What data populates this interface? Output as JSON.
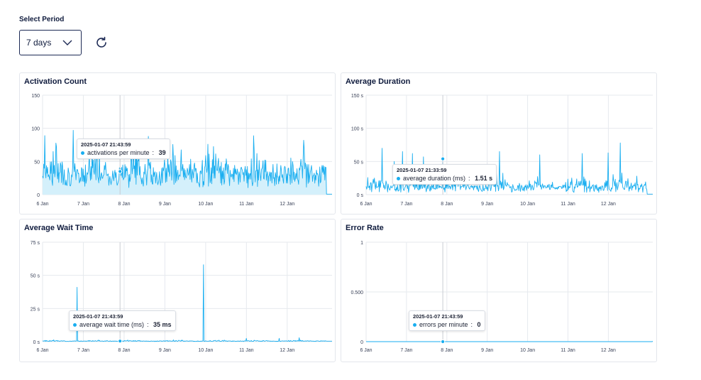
{
  "controls": {
    "period_label": "Select Period",
    "period_value": "7 days",
    "refresh_icon": "refresh-icon",
    "chevron_icon": "chevron-down-icon"
  },
  "colors": {
    "series": "#19aef0",
    "fill": "#d4f0fb",
    "grid": "#e6e9ee",
    "cursor": "#c9ccd2",
    "text": "#0f1b3d"
  },
  "chart_data": [
    {
      "id": "activation",
      "type": "area",
      "title": "Activation Count",
      "x_tick_labels": [
        "6 Jan",
        "7 Jan",
        "8 Jan",
        "9 Jan",
        "10 Jan",
        "11 Jan",
        "12 Jan"
      ],
      "y_tick_labels": [
        "0",
        "50",
        "100",
        "150"
      ],
      "y_ticks": [
        0,
        50,
        100,
        150
      ],
      "ylim": [
        0,
        150
      ],
      "xlim": [
        0,
        7.1
      ],
      "grid": true,
      "baseline": 25,
      "spread": 28,
      "spikes": [
        [
          0.05,
          89
        ],
        [
          0.75,
          97
        ],
        [
          4.05,
          76
        ],
        [
          5.25,
          62
        ],
        [
          6.4,
          82
        ],
        [
          6.85,
          44
        ],
        [
          2.6,
          88
        ]
      ],
      "tail_zero_from": 6.95,
      "seed": 7,
      "fill_area": true,
      "cursor_x": 1.9,
      "tooltip": {
        "time": "2025-01-07 21:43:59",
        "series": "activations per minute",
        "value": "39"
      }
    },
    {
      "id": "duration",
      "type": "line",
      "title": "Average Duration",
      "x_tick_labels": [
        "6 Jan",
        "7 Jan",
        "8 Jan",
        "9 Jan",
        "10 Jan",
        "11 Jan",
        "12 Jan"
      ],
      "y_tick_labels": [
        "0 s",
        "50 s",
        "100 s",
        "150 s"
      ],
      "y_ticks": [
        0,
        50,
        100,
        150
      ],
      "ylim": [
        0,
        150
      ],
      "xlim": [
        0,
        7.1
      ],
      "grid": true,
      "baseline": 8,
      "spread": 14,
      "spikes": [
        [
          0.9,
          134
        ],
        [
          0.9,
          65
        ],
        [
          0.4,
          70
        ],
        [
          1.15,
          62
        ],
        [
          1.42,
          57
        ],
        [
          3.3,
          65
        ],
        [
          4.3,
          60
        ],
        [
          5.35,
          62
        ],
        [
          6.0,
          63
        ],
        [
          6.3,
          78
        ],
        [
          6.7,
          28
        ],
        [
          1.9,
          54
        ],
        [
          0.7,
          50
        ]
      ],
      "tail_zero_from": 6.95,
      "seed": 11,
      "fill_area": false,
      "cursor_x": 1.9,
      "tooltip": {
        "time": "2025-01-07 21:33:59",
        "series": "average duration (ms)",
        "value": "1.51 s"
      }
    },
    {
      "id": "wait",
      "type": "line",
      "title": "Average Wait Time",
      "x_tick_labels": [
        "6 Jan",
        "7 Jan",
        "8 Jan",
        "9 Jan",
        "10 Jan",
        "11 Jan",
        "12 Jan"
      ],
      "y_tick_labels": [
        "0 s",
        "25 s",
        "50 s",
        "75 s"
      ],
      "y_ticks": [
        0,
        25,
        50,
        75
      ],
      "ylim": [
        0,
        75
      ],
      "xlim": [
        0,
        7.1
      ],
      "grid": true,
      "baseline": 0.3,
      "spread": 0.5,
      "spikes": [
        [
          0.85,
          41
        ],
        [
          3.95,
          58
        ],
        [
          5.0,
          2.5
        ],
        [
          5.8,
          2.5
        ],
        [
          6.3,
          3
        ]
      ],
      "tail_zero_from": 6.95,
      "seed": 3,
      "fill_area": false,
      "cursor_x": 1.9,
      "tooltip": {
        "time": "2025-01-07 21:43:59",
        "series": "average wait time (ms)",
        "value": "35 ms"
      }
    },
    {
      "id": "errors",
      "type": "line",
      "title": "Error Rate",
      "x_tick_labels": [
        "6 Jan",
        "7 Jan",
        "8 Jan",
        "9 Jan",
        "10 Jan",
        "11 Jan",
        "12 Jan"
      ],
      "y_tick_labels": [
        "0",
        "0.500",
        "1"
      ],
      "y_ticks": [
        0,
        0.5,
        1
      ],
      "ylim": [
        0,
        1
      ],
      "xlim": [
        0,
        7.1
      ],
      "grid": true,
      "baseline": 0,
      "spread": 0,
      "spikes": [],
      "tail_zero_from": 7.1,
      "seed": 1,
      "fill_area": false,
      "cursor_x": 1.9,
      "tooltip": {
        "time": "2025-01-07 21:43:59",
        "series": "errors per minute",
        "value": "0"
      }
    }
  ]
}
